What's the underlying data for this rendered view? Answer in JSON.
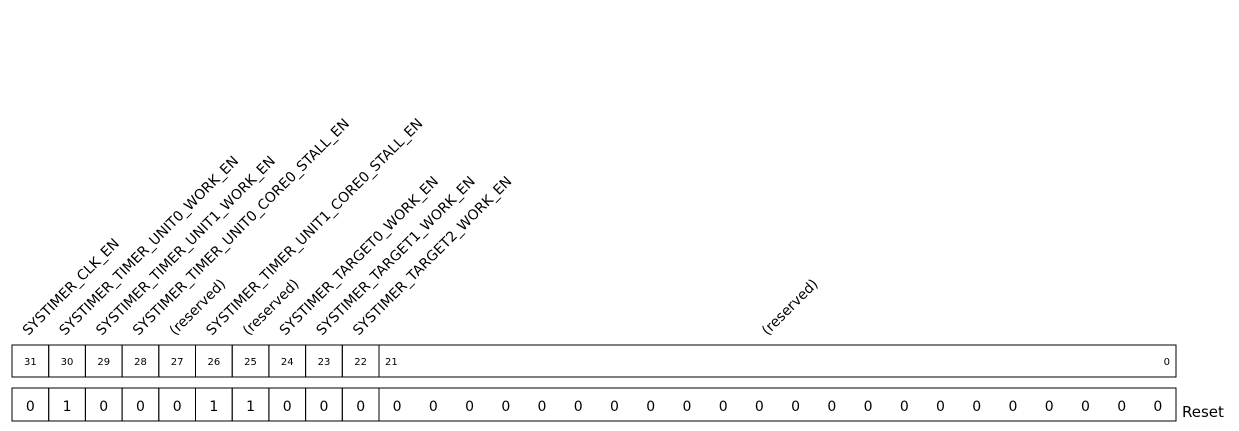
{
  "register": {
    "fields": [
      {
        "name": "SYSTIMER_CLK_EN",
        "bit": "31",
        "reset": "0"
      },
      {
        "name": "SYSTIMER_TIMER_UNIT0_WORK_EN",
        "bit": "30",
        "reset": "1"
      },
      {
        "name": "SYSTIMER_TIMER_UNIT1_WORK_EN",
        "bit": "29",
        "reset": "0"
      },
      {
        "name": "SYSTIMER_TIMER_UNIT0_CORE0_STALL_EN",
        "bit": "28",
        "reset": "0"
      },
      {
        "name": "(reserved)",
        "bit": "27",
        "reset": "0"
      },
      {
        "name": "SYSTIMER_TIMER_UNIT1_CORE0_STALL_EN",
        "bit": "26",
        "reset": "1"
      },
      {
        "name": "(reserved)",
        "bit": "25",
        "reset": "1"
      },
      {
        "name": "SYSTIMER_TARGET0_WORK_EN",
        "bit": "24",
        "reset": "0"
      },
      {
        "name": "SYSTIMER_TARGET1_WORK_EN",
        "bit": "23",
        "reset": "0"
      },
      {
        "name": "SYSTIMER_TARGET2_WORK_EN",
        "bit": "22",
        "reset": "0"
      }
    ],
    "reserved_field": {
      "name": "(reserved)",
      "bit_high": "21",
      "bit_low": "0",
      "reset_values": [
        "0",
        "0",
        "0",
        "0",
        "0",
        "0",
        "0",
        "0",
        "0",
        "0",
        "0",
        "0",
        "0",
        "0",
        "0",
        "0",
        "0",
        "0",
        "0",
        "0",
        "0",
        "0"
      ]
    },
    "reset_label": "Reset"
  }
}
